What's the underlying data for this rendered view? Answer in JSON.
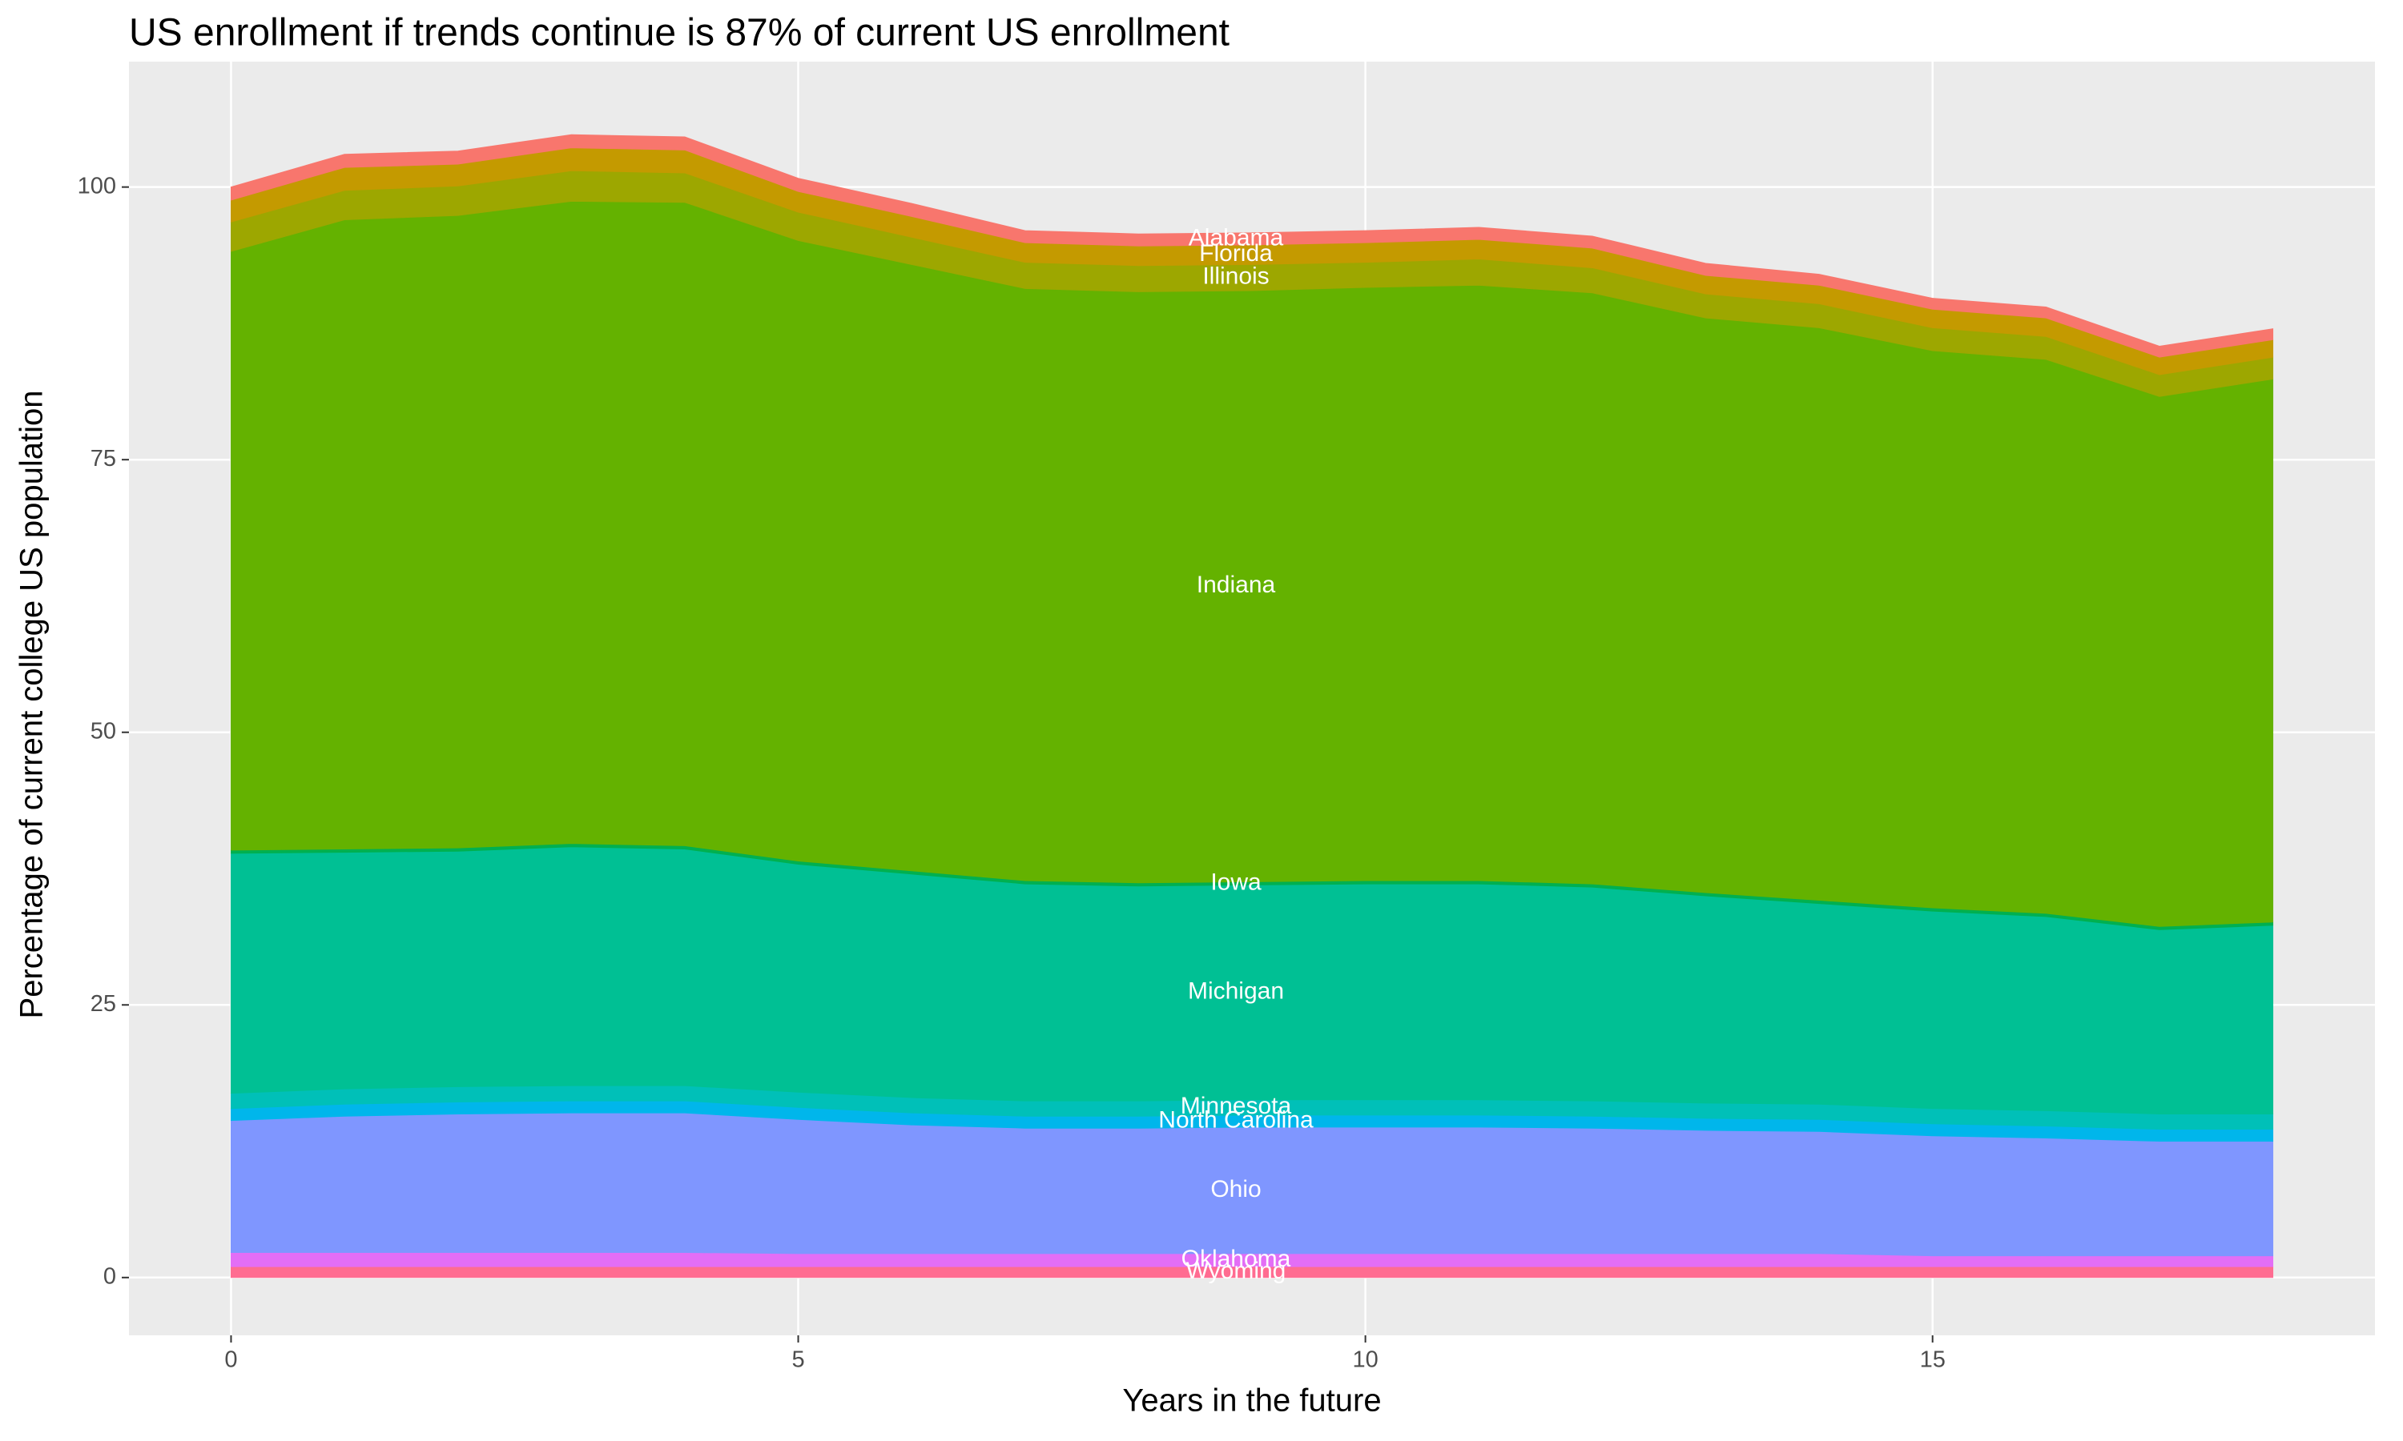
{
  "chart_data": {
    "type": "stacked_area",
    "title": "US enrollment if trends continue is 87% of current US enrollment",
    "xlabel": "Years in the future",
    "ylabel": "Percentage of current college US population",
    "x": [
      0,
      1,
      2,
      3,
      4,
      5,
      6,
      7,
      8,
      9,
      10,
      11,
      12,
      13,
      14,
      15,
      16,
      17,
      18
    ],
    "xlim": [
      -0.9,
      18.9
    ],
    "xticks": [
      0,
      5,
      10,
      15
    ],
    "ylim": [
      -5.3,
      111.5
    ],
    "yticks": [
      0,
      25,
      50,
      75,
      100
    ],
    "grid": true,
    "series": [
      {
        "name": "Wyoming",
        "color": "#FF6C91",
        "values": [
          1,
          1,
          1,
          1,
          1,
          1,
          1,
          1,
          1,
          1,
          1,
          1,
          1,
          1,
          1,
          1,
          1,
          1,
          1
        ]
      },
      {
        "name": "Oklahoma",
        "color": "#E36EF6",
        "values": [
          1.3,
          1.3,
          1.3,
          1.3,
          1.3,
          1.2,
          1.2,
          1.2,
          1.2,
          1.2,
          1.2,
          1.2,
          1.2,
          1.2,
          1.2,
          1.0,
          1.0,
          1.0,
          1.0
        ]
      },
      {
        "name": "Ohio",
        "color": "#7F96FF",
        "values": [
          12.1,
          12.5,
          12.7,
          12.8,
          12.8,
          12.3,
          11.8,
          11.5,
          11.5,
          11.6,
          11.6,
          11.6,
          11.5,
          11.3,
          11.2,
          11.0,
          10.8,
          10.5,
          10.5
        ]
      },
      {
        "name": "North Carolina",
        "color": "#00B6EB",
        "values": [
          1.1,
          1.1,
          1.1,
          1.1,
          1.1,
          1.1,
          1.1,
          1.1,
          1.1,
          1.1,
          1.1,
          1.1,
          1.1,
          1.1,
          1.1,
          1.1,
          1.1,
          1.1,
          1.1
        ]
      },
      {
        "name": "Minnesota",
        "color": "#00C0B8",
        "values": [
          1.4,
          1.4,
          1.4,
          1.4,
          1.4,
          1.4,
          1.4,
          1.4,
          1.4,
          1.4,
          1.4,
          1.4,
          1.4,
          1.4,
          1.4,
          1.4,
          1.4,
          1.4,
          1.4
        ]
      },
      {
        "name": "Michigan",
        "color": "#00C094",
        "values": [
          22.0,
          21.7,
          21.6,
          21.9,
          21.7,
          20.9,
          20.5,
          19.9,
          19.7,
          19.7,
          19.8,
          19.8,
          19.6,
          19.0,
          18.4,
          18.1,
          17.8,
          16.9,
          17.3
        ]
      },
      {
        "name": "Iowa",
        "color": "#00B050",
        "values": [
          0.3,
          0.3,
          0.3,
          0.3,
          0.3,
          0.3,
          0.3,
          0.3,
          0.3,
          0.3,
          0.3,
          0.3,
          0.3,
          0.3,
          0.3,
          0.3,
          0.3,
          0.3,
          0.3
        ]
      },
      {
        "name": "Indiana",
        "color": "#64B200",
        "values": [
          54.9,
          57.7,
          58.0,
          58.9,
          59.0,
          56.9,
          55.6,
          54.3,
          54.2,
          54.2,
          54.4,
          54.6,
          54.2,
          52.7,
          52.5,
          51.1,
          50.8,
          48.6,
          49.8
        ]
      },
      {
        "name": "Illinois",
        "color": "#9DA700",
        "values": [
          2.7,
          2.7,
          2.7,
          2.8,
          2.7,
          2.6,
          2.5,
          2.4,
          2.4,
          2.4,
          2.3,
          2.4,
          2.3,
          2.2,
          2.2,
          2.1,
          2.1,
          2.0,
          2.0
        ]
      },
      {
        "name": "Florida",
        "color": "#C49A00",
        "values": [
          2.0,
          2.1,
          2.0,
          2.1,
          2.1,
          1.9,
          1.9,
          1.8,
          1.8,
          1.8,
          1.8,
          1.8,
          1.8,
          1.7,
          1.7,
          1.7,
          1.7,
          1.6,
          1.6
        ]
      },
      {
        "name": "Alabama",
        "color": "#F8766D",
        "values": [
          1.2,
          1.2,
          1.2,
          1.2,
          1.2,
          1.2,
          1.2,
          1.1,
          1.1,
          1.1,
          1.1,
          1.1,
          1.1,
          1.1,
          1.0,
          1.0,
          1.0,
          1.0,
          1.0
        ]
      }
    ]
  }
}
